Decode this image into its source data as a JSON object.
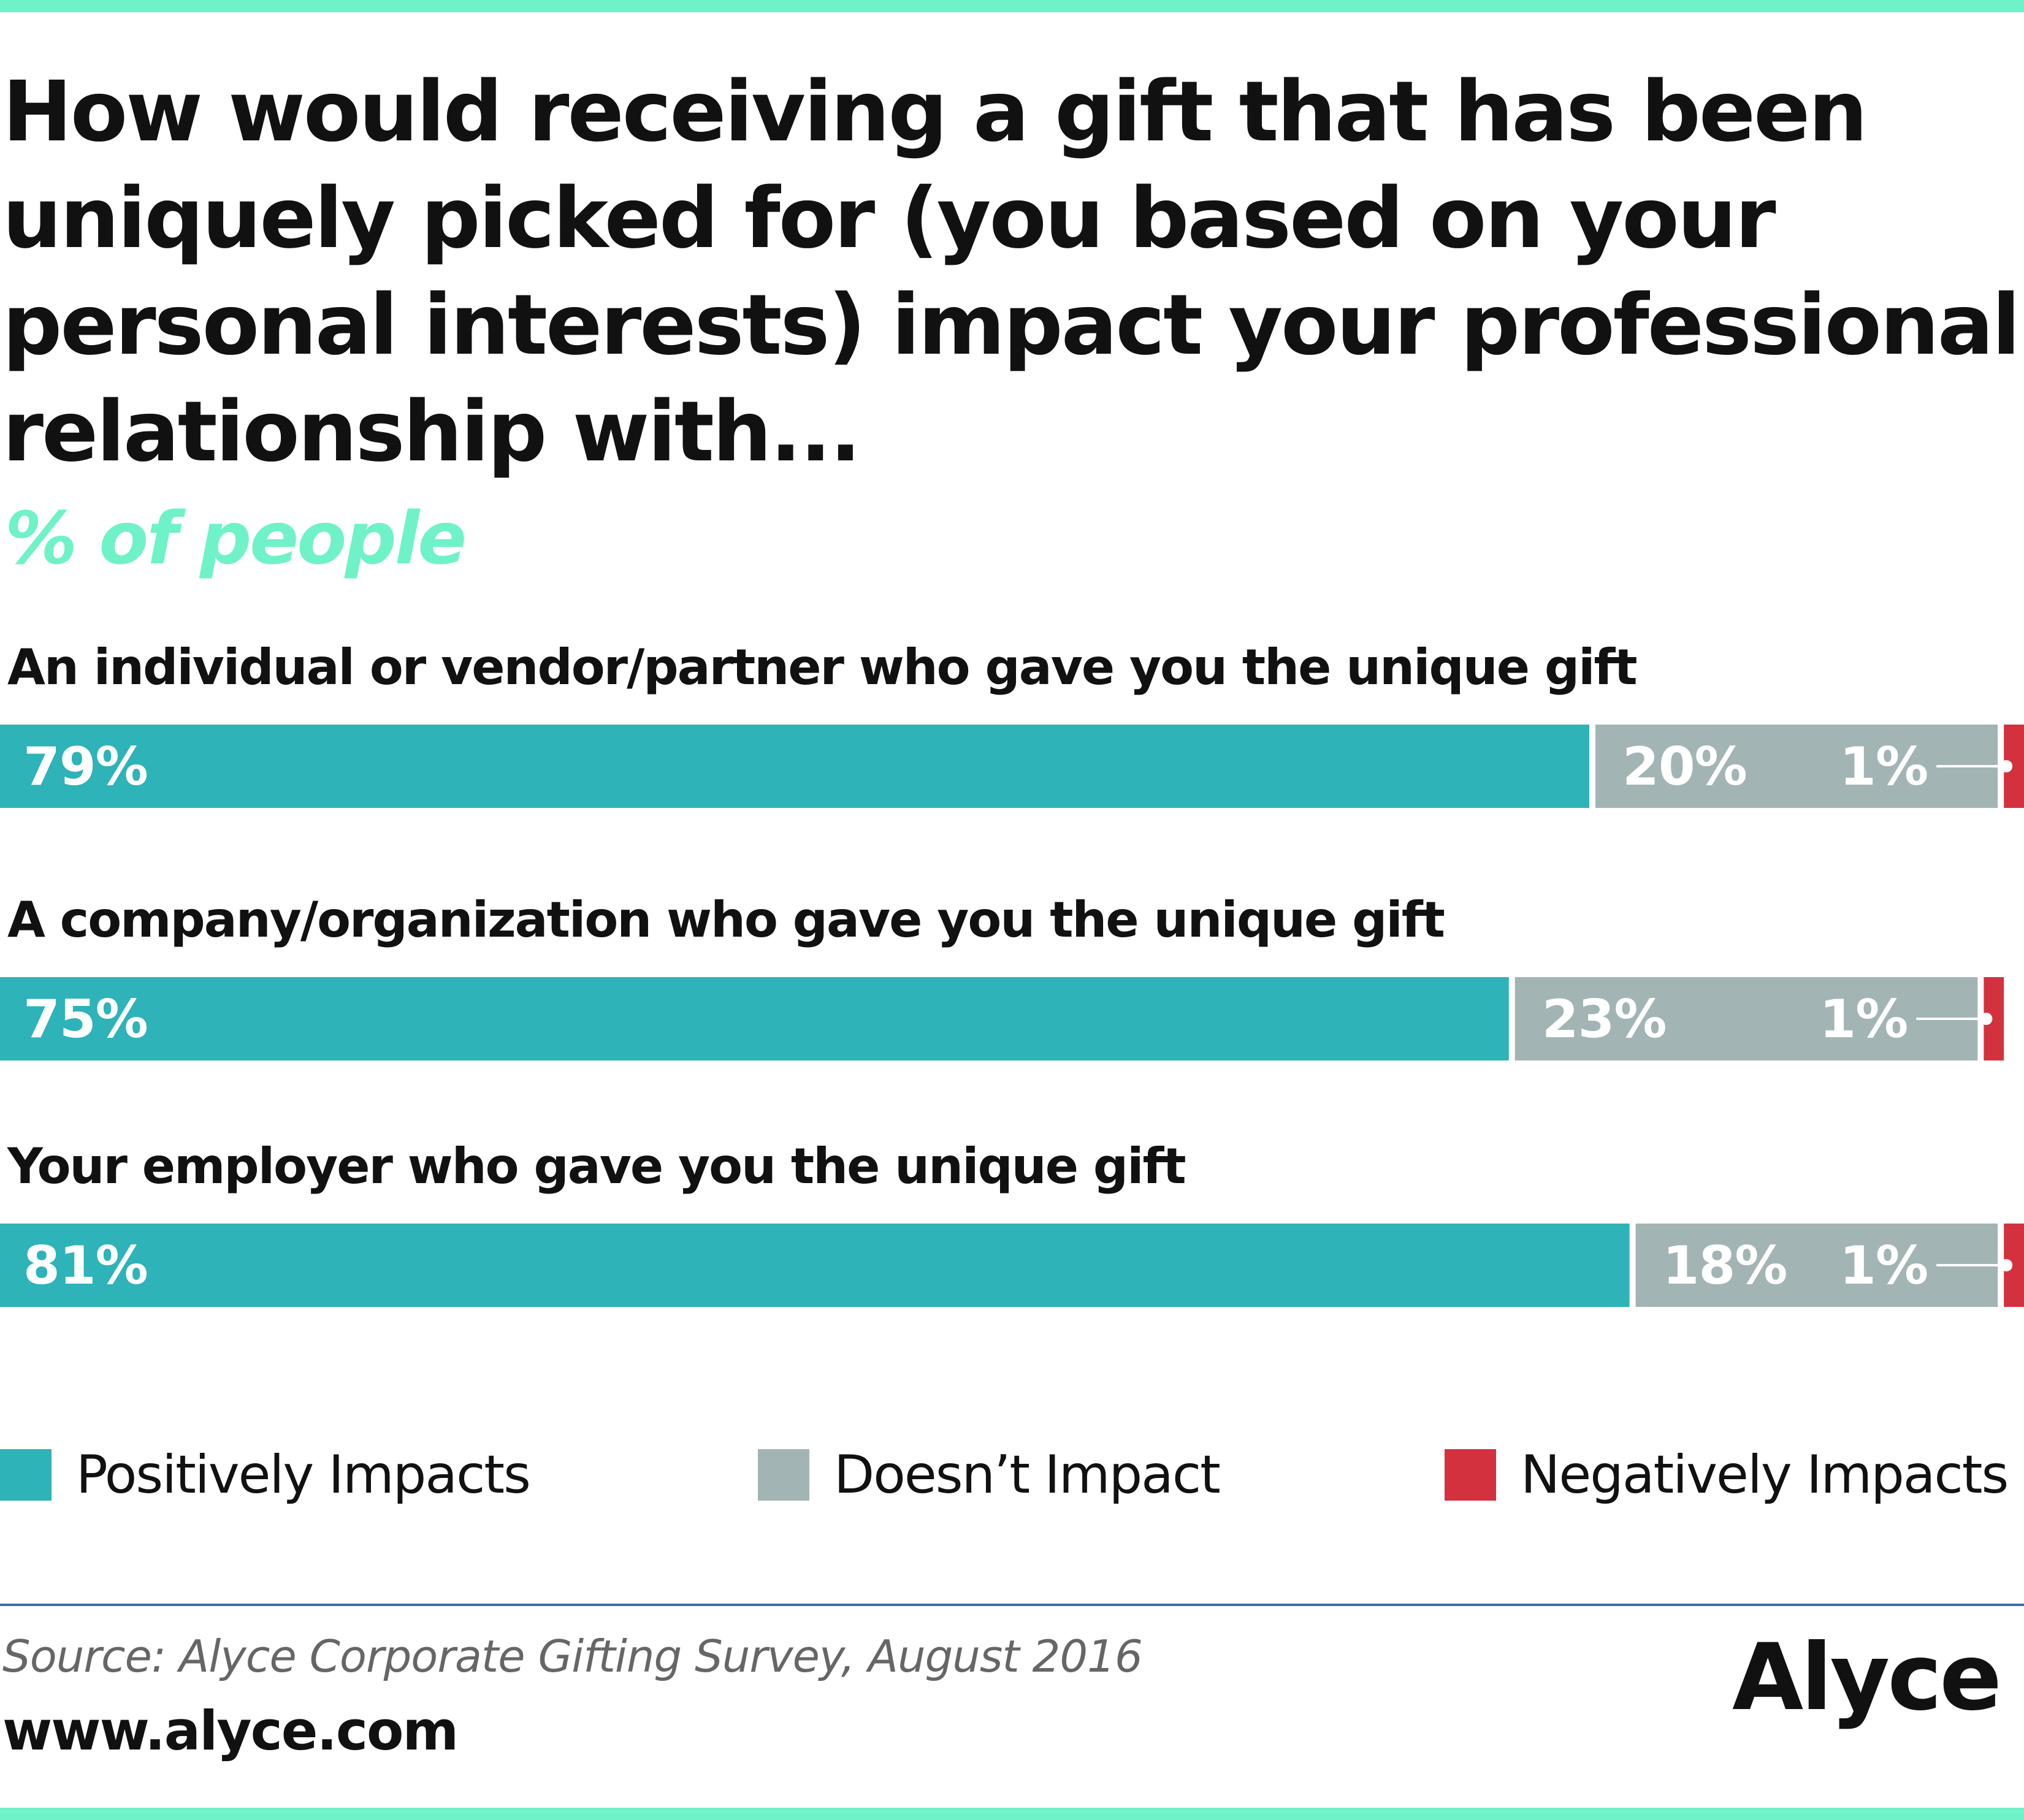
{
  "header": {
    "title": "How would receiving a gift that has been uniquely picked for (you based on your personal interests) impact your professional relationship with...",
    "subtitle": "% of people"
  },
  "colors": {
    "accent": "#6ff2c8",
    "positive": "#2db3b8",
    "neutral": "#a3b4b5",
    "negative": "#d4313f",
    "rule": "#3d6fa8"
  },
  "chart_data": {
    "type": "bar",
    "orientation": "horizontal",
    "stacked": true,
    "xlim": [
      0,
      100
    ],
    "grid": false,
    "legend_position": "bottom",
    "categories": [
      "An individual or vendor/partner who gave you the unique gift",
      "A company/organization who gave you the unique gift",
      "Your employer who gave you the unique gift"
    ],
    "series": [
      {
        "name": "Positively Impacts",
        "values": [
          79,
          75,
          81
        ],
        "labels": [
          "79%",
          "75%",
          "81%"
        ],
        "color": "#2db3b8"
      },
      {
        "name": "Doesn’t Impact",
        "values": [
          20,
          23,
          18
        ],
        "labels": [
          "20%",
          "23%",
          "18%"
        ],
        "color": "#a3b4b5"
      },
      {
        "name": "Negatively Impacts",
        "values": [
          1,
          1,
          1
        ],
        "labels": [
          "1%",
          "1%",
          "1%"
        ],
        "color": "#d4313f"
      }
    ]
  },
  "footer": {
    "source": "Source: Alyce Corporate Gifting Survey, August 2016",
    "website": "www.alyce.com",
    "brand": "Alyce"
  }
}
